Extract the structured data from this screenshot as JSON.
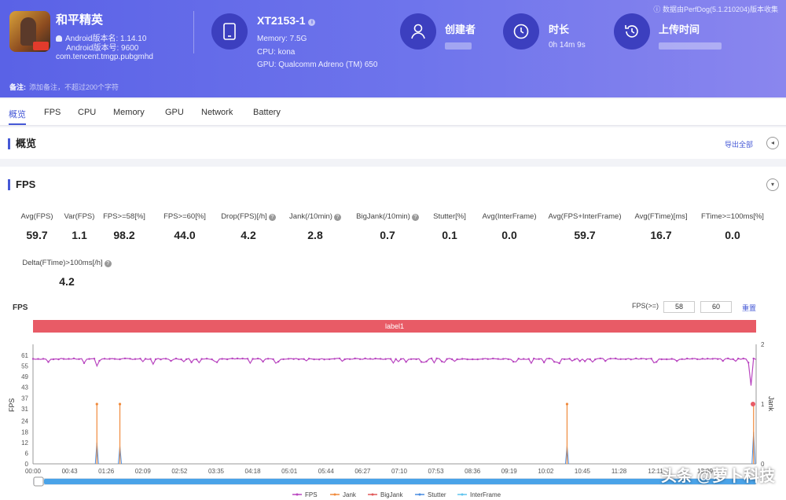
{
  "app": {
    "name": "和平精英",
    "version_name": "Android版本名: 1.14.10",
    "version_code": "Android版本号: 9600",
    "package": "com.tencent.tmgp.pubgmhd"
  },
  "device": {
    "title": "XT2153-1",
    "memory": "Memory: 7.5G",
    "cpu": "CPU: kona",
    "gpu": "GPU: Qualcomm Adreno (TM) 650"
  },
  "creator": {
    "label": "创建者"
  },
  "duration": {
    "label": "时长",
    "value": "0h 14m 9s"
  },
  "upload": {
    "label": "上传时间"
  },
  "perfdog_note": "数据由PerfDog(5.1.210204)版本收集",
  "note": {
    "label": "备注:",
    "placeholder": "添加备注，不超过200个字符"
  },
  "tabs": [
    "概览",
    "FPS",
    "CPU",
    "Memory",
    "GPU",
    "Network",
    "Battery"
  ],
  "overview_title": "概览",
  "export_label": "导出全部",
  "fps_section_title": "FPS",
  "stats": [
    {
      "label": "Avg(FPS)",
      "value": "59.7"
    },
    {
      "label": "Var(FPS)",
      "value": "1.1"
    },
    {
      "label": "FPS>=58[%]",
      "value": "98.2"
    },
    {
      "label": "FPS>=60[%]",
      "value": "44.0"
    },
    {
      "label": "Drop(FPS)[/h]",
      "value": "4.2"
    },
    {
      "label": "Jank(/10min)",
      "value": "2.8"
    },
    {
      "label": "BigJank(/10min)",
      "value": "0.7"
    },
    {
      "label": "Stutter[%]",
      "value": "0.1"
    },
    {
      "label": "Avg(InterFrame)",
      "value": "0.0"
    },
    {
      "label": "Avg(FPS+InterFrame)",
      "value": "59.7"
    },
    {
      "label": "Avg(FTime)[ms]",
      "value": "16.7"
    },
    {
      "label": "FTime>=100ms[%]",
      "value": "0.0"
    },
    {
      "label": "Delta(FTime)>100ms[/h]",
      "value": "4.2"
    }
  ],
  "chart_header": {
    "title": "FPS",
    "threshold_label": "FPS(>=)",
    "threshold_low": "58",
    "threshold_high": "60",
    "reset_label": "重置",
    "band_label": "label1"
  },
  "chart_data": {
    "type": "line",
    "ylabel": "FPS",
    "y2label": "Jank",
    "ylim": [
      0,
      61
    ],
    "y_ticks": [
      "0",
      "6",
      "12",
      "18",
      "24",
      "31",
      "37",
      "43",
      "49",
      "55",
      "61"
    ],
    "y2_ticks": [
      "0",
      "1",
      "2"
    ],
    "x_ticks": [
      "00:00",
      "00:43",
      "01:26",
      "02:09",
      "02:52",
      "03:35",
      "04:18",
      "05:01",
      "05:44",
      "06:27",
      "07:10",
      "07:53",
      "08:36",
      "09:19",
      "10:02",
      "10:45",
      "11:28",
      "12:11",
      "13:09"
    ],
    "series": [
      {
        "name": "FPS",
        "color": "#b946c0",
        "baseline": 59,
        "dips_seconds": [
          75,
          140,
          600,
          843
        ],
        "dips_values": [
          55,
          56,
          57,
          44
        ]
      },
      {
        "name": "Jank",
        "color": "#f08a3c",
        "spikes_seconds": [
          75,
          102,
          627,
          846
        ],
        "spike_values": [
          1,
          1,
          1,
          1
        ]
      },
      {
        "name": "BigJank",
        "color": "#e05a5a"
      },
      {
        "name": "Stutter",
        "color": "#4a8de0",
        "spikes_seconds": [
          75,
          102,
          627,
          846
        ],
        "spike_values": [
          12,
          10,
          10,
          18
        ]
      },
      {
        "name": "InterFrame",
        "color": "#5fc4ee"
      }
    ]
  },
  "watermark": "头条 @萝卜科技"
}
